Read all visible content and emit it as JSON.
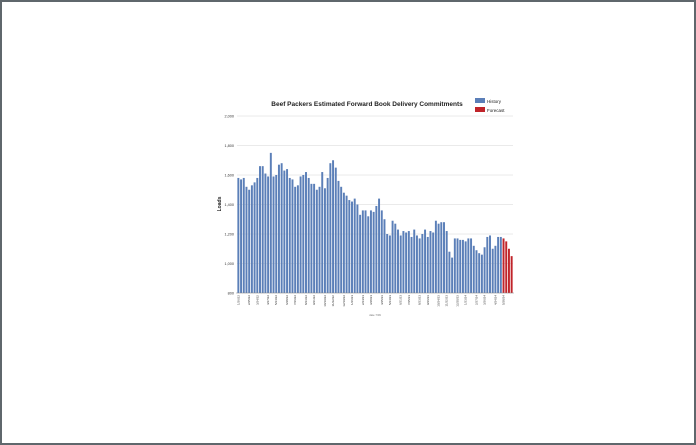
{
  "chart_data": {
    "type": "bar",
    "title": "Beef Packers Estimated Forward Book Delivery Commitments",
    "ylabel": "Loads",
    "xlabel_note": "date 7/09",
    "ylim": [
      800,
      2000
    ],
    "yticks": [
      "2,000",
      "1,800",
      "1,600",
      "1,400",
      "1,200",
      "1,000",
      "800"
    ],
    "ytick_values": [
      2000,
      1800,
      1600,
      1400,
      1200,
      1000,
      800
    ],
    "grid": true,
    "legend_position": "top-right",
    "series": [
      {
        "name": "History",
        "color": "#5b7fb8",
        "values": [
          1580,
          1570,
          1580,
          1520,
          1500,
          1530,
          1550,
          1580,
          1660,
          1660,
          1610,
          1590,
          1750,
          1590,
          1600,
          1670,
          1680,
          1630,
          1640,
          1580,
          1570,
          1520,
          1530,
          1590,
          1600,
          1620,
          1580,
          1540,
          1540,
          1500,
          1520,
          1620,
          1510,
          1580,
          1680,
          1700,
          1650,
          1560,
          1520,
          1480,
          1460,
          1430,
          1420,
          1440,
          1400,
          1330,
          1360,
          1360,
          1320,
          1360,
          1350,
          1390,
          1440,
          1360,
          1300,
          1200,
          1190,
          1290,
          1270,
          1230,
          1190,
          1220,
          1210,
          1220,
          1180,
          1230,
          1190,
          1170,
          1200,
          1230,
          1180,
          1220,
          1210,
          1290,
          1270,
          1280,
          1280,
          1220,
          1080,
          1040,
          1170,
          1170,
          1160,
          1160,
          1150,
          1170,
          1170,
          1120,
          1090,
          1070,
          1060,
          1110,
          1180,
          1190,
          1100,
          1120,
          1180,
          1180
        ]
      },
      {
        "name": "Forecast",
        "color": "#c0242a",
        "values": [
          1170,
          1150,
          1100,
          1050
        ]
      }
    ],
    "x_tick_labels": [
      "1/26/22",
      "2/25/22",
      "3/24/22",
      "4/27/22",
      "5/24/22",
      "6/28/22",
      "7/26/22",
      "8/23/22",
      "9/21/22",
      "10/19/22",
      "11/22/22",
      "12/19/22",
      "1/26/23",
      "2/24/23",
      "3/28/23",
      "4/25/23",
      "5/24/23",
      "6/21/23",
      "7/25/23",
      "8/23/23",
      "9/26/23",
      "10/24/23",
      "11/22/23",
      "12/20/23",
      "1/23/24",
      "2/27/24",
      "3/26/24",
      "4/24/24",
      "5/28/24"
    ]
  }
}
